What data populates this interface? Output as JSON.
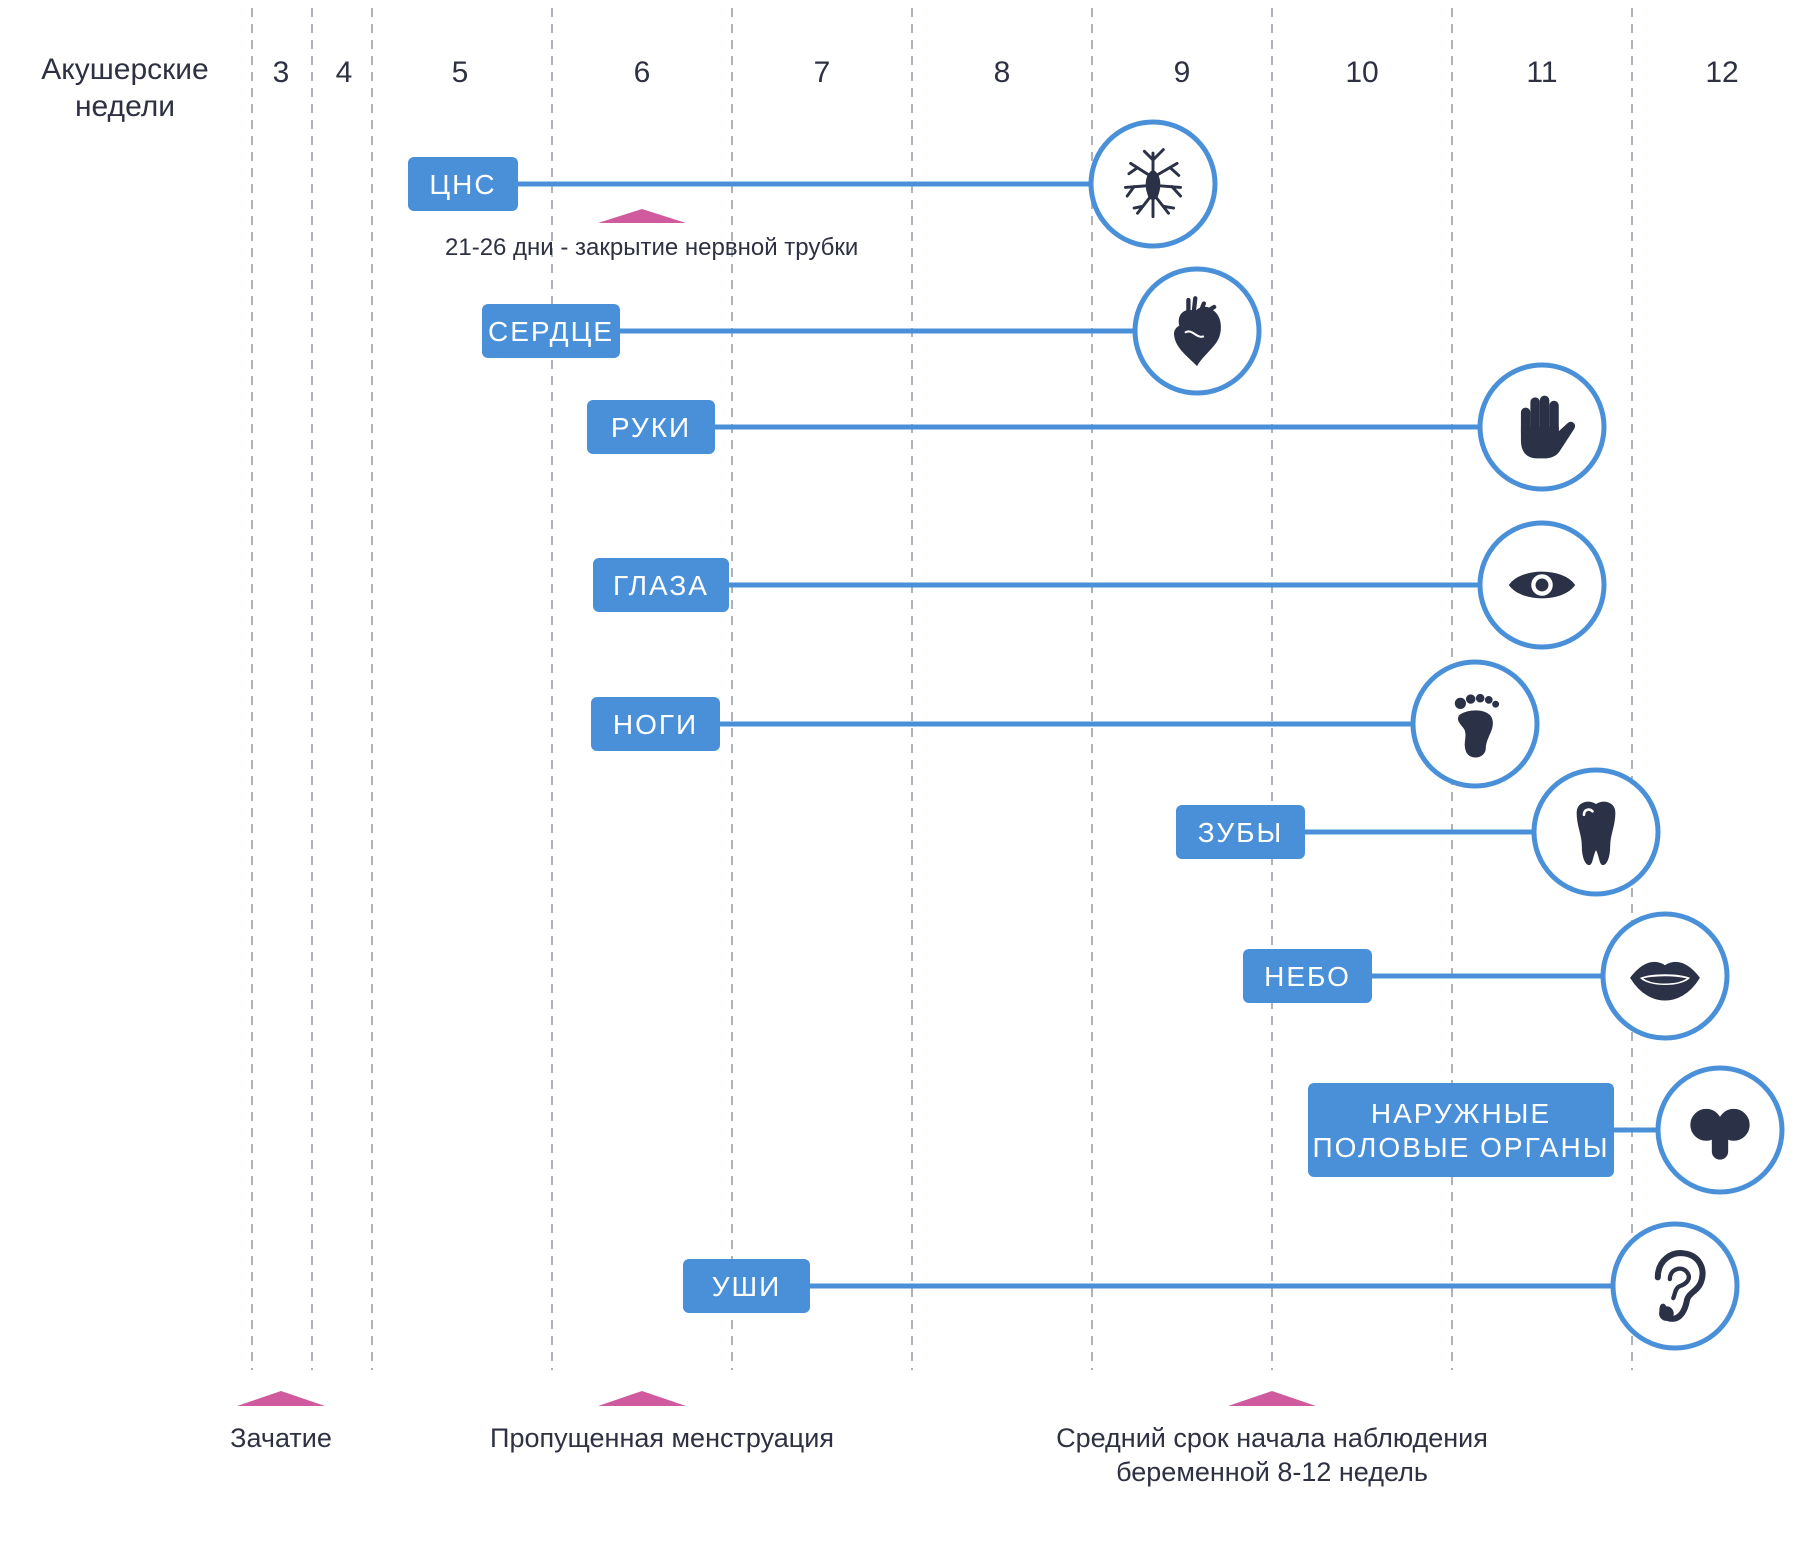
{
  "header": {
    "title_lines": [
      "Акушерские",
      "недели"
    ]
  },
  "weeks": [
    "3",
    "4",
    "5",
    "6",
    "7",
    "8",
    "9",
    "10",
    "11",
    "12"
  ],
  "organs": [
    {
      "label_lines": [
        "ЦНС"
      ],
      "start_week": 5,
      "end_week": 9.3,
      "icon": "neuron-icon"
    },
    {
      "label_lines": [
        "СЕРДЦЕ"
      ],
      "start_week": 5.5,
      "end_week": 9.6,
      "icon": "heart-icon"
    },
    {
      "label_lines": [
        "РУКИ"
      ],
      "start_week": 6,
      "end_week": 11.3,
      "icon": "hand-icon"
    },
    {
      "label_lines": [
        "ГЛАЗА"
      ],
      "start_week": 6.1,
      "end_week": 11.3,
      "icon": "eye-icon"
    },
    {
      "label_lines": [
        "НОГИ"
      ],
      "start_week": 6.1,
      "end_week": 10.9,
      "icon": "foot-icon"
    },
    {
      "label_lines": [
        "ЗУБЫ"
      ],
      "start_week": 9.3,
      "end_week": 11.6,
      "icon": "tooth-icon"
    },
    {
      "label_lines": [
        "НЕБО"
      ],
      "start_week": 9.6,
      "end_week": 11.9,
      "icon": "mouth-icon"
    },
    {
      "label_lines": [
        "НАРУЖНЫЕ",
        "ПОЛОВЫЕ ОРГАНЫ"
      ],
      "start_week": 10.3,
      "end_week": 12.1,
      "icon": "genitals-icon"
    },
    {
      "label_lines": [
        "УШИ"
      ],
      "start_week": 6.6,
      "end_week": 11.9,
      "icon": "ear-icon"
    }
  ],
  "neural_tube_note": {
    "text": "21-26 дни  - закрытие нервной трубки",
    "week": 6
  },
  "markers": [
    {
      "label_lines": [
        "Зачатие"
      ],
      "week": 3
    },
    {
      "label_lines": [
        "Пропущенная менструация"
      ],
      "week": 6
    },
    {
      "label_lines": [
        "Средний срок начала наблюдения",
        "беременной 8-12 недель"
      ],
      "week": 9.5
    }
  ],
  "colors": {
    "accent_blue": "#4a90d9",
    "marker_pink": "#cf5a9e",
    "icon_dark": "#2b3146",
    "text_dark": "#2d3142",
    "grid_dash": "#9aa0a8"
  }
}
